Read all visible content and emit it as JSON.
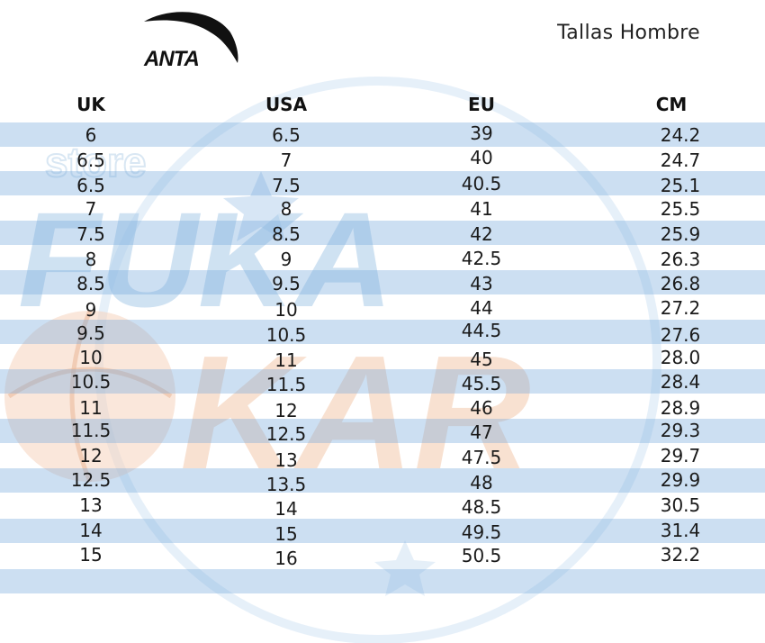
{
  "header": {
    "brand": "ANTA",
    "title": "Tallas Hombre"
  },
  "table": {
    "columns": [
      "UK",
      "USA",
      "EU",
      "CM"
    ],
    "rows": [
      [
        "6",
        "6.5",
        "39",
        "24.2"
      ],
      [
        "6.5",
        "7",
        "40",
        "24.7"
      ],
      [
        "6.5",
        "7.5",
        "40.5",
        "25.1"
      ],
      [
        "7",
        "8",
        "41",
        "25.5"
      ],
      [
        "7.5",
        "8.5",
        "42",
        "25.9"
      ],
      [
        "8",
        "9",
        "42.5",
        "26.3"
      ],
      [
        "8.5",
        "9.5",
        "43",
        "26.8"
      ],
      [
        "9",
        "10",
        "44",
        "27.2"
      ],
      [
        "9.5",
        "10.5",
        "44.5",
        "27.6"
      ],
      [
        "10",
        "11",
        "45",
        "28.0"
      ],
      [
        "10.5",
        "11.5",
        "45.5",
        "28.4"
      ],
      [
        "11",
        "12",
        "46",
        "28.9"
      ],
      [
        "11.5",
        "12.5",
        "47",
        "29.3"
      ],
      [
        "12",
        "13",
        "47.5",
        "29.7"
      ],
      [
        "12.5",
        "13.5",
        "48",
        "29.9"
      ],
      [
        "13",
        "14",
        "48.5",
        "30.5"
      ],
      [
        "14",
        "15",
        "49.5",
        "31.4"
      ],
      [
        "15",
        "16",
        "50.5",
        "32.2"
      ]
    ]
  },
  "colors": {
    "stripe": "#9cc2e6",
    "watermark_blue": "#a9cbe9",
    "watermark_orange": "#f3c9ad"
  },
  "watermark": {
    "line1": "store",
    "line2": "FUKA",
    "line3": "KAR"
  }
}
